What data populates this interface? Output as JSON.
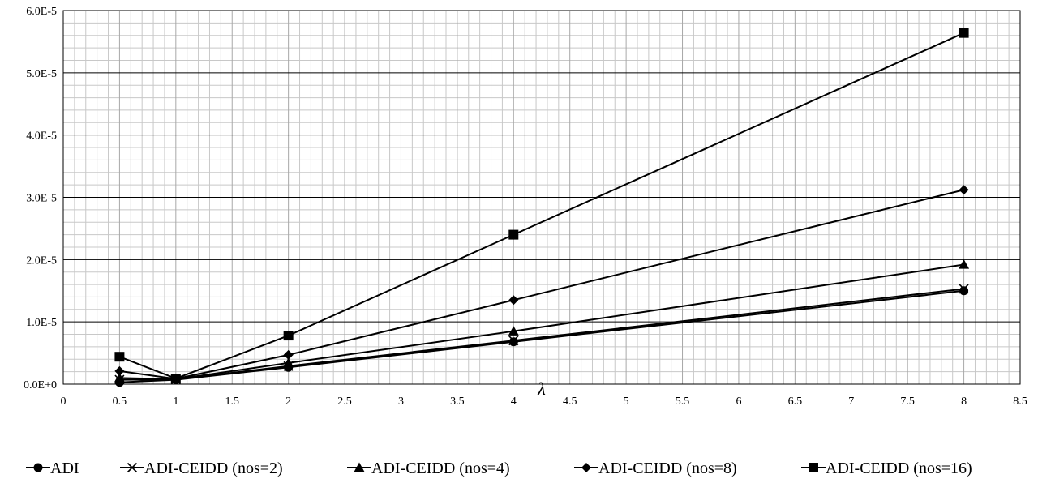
{
  "chart_data": {
    "type": "line",
    "xlabel": "λ",
    "ylabel": "",
    "title": "",
    "xlim": [
      0,
      8.5
    ],
    "ylim": [
      0,
      6e-05
    ],
    "x_ticks": [
      "0",
      "0.5",
      "1",
      "1.5",
      "2",
      "2.5",
      "3",
      "3.5",
      "4",
      "4.5",
      "5",
      "5.5",
      "6",
      "6.5",
      "7",
      "7.5",
      "8",
      "8.5"
    ],
    "y_ticks": [
      "0.0E+0",
      "1.0E-5",
      "2.0E-5",
      "3.0E-5",
      "4.0E-5",
      "5.0E-5",
      "6.0E-5"
    ],
    "grid": {
      "major": true,
      "minor": true
    },
    "legend_position": "bottom",
    "x": [
      0.5,
      1,
      2,
      4,
      8
    ],
    "series": [
      {
        "name": "ADI",
        "marker": "circle",
        "values": [
          3e-07,
          7e-07,
          2.7e-06,
          6.8e-06,
          1.5e-05
        ]
      },
      {
        "name": "ADI-CEIDD (nos=2)",
        "marker": "x",
        "values": [
          7e-07,
          7.5e-07,
          2.9e-06,
          7e-06,
          1.53e-05
        ]
      },
      {
        "name": "ADI-CEIDD (nos=4)",
        "marker": "triangle",
        "values": [
          1e-06,
          8e-07,
          3.4e-06,
          8.5e-06,
          1.92e-05
        ]
      },
      {
        "name": "ADI-CEIDD (nos=8)",
        "marker": "diamond",
        "values": [
          2.1e-06,
          8.5e-07,
          4.7e-06,
          1.35e-05,
          3.12e-05
        ]
      },
      {
        "name": "ADI-CEIDD (nos=16)",
        "marker": "square",
        "values": [
          4.4e-06,
          9e-07,
          7.8e-06,
          2.4e-05,
          5.64e-05
        ]
      }
    ],
    "colors": {
      "line": "#000000",
      "major_grid": "#000000",
      "minor_grid": "#c8c8c8"
    }
  }
}
